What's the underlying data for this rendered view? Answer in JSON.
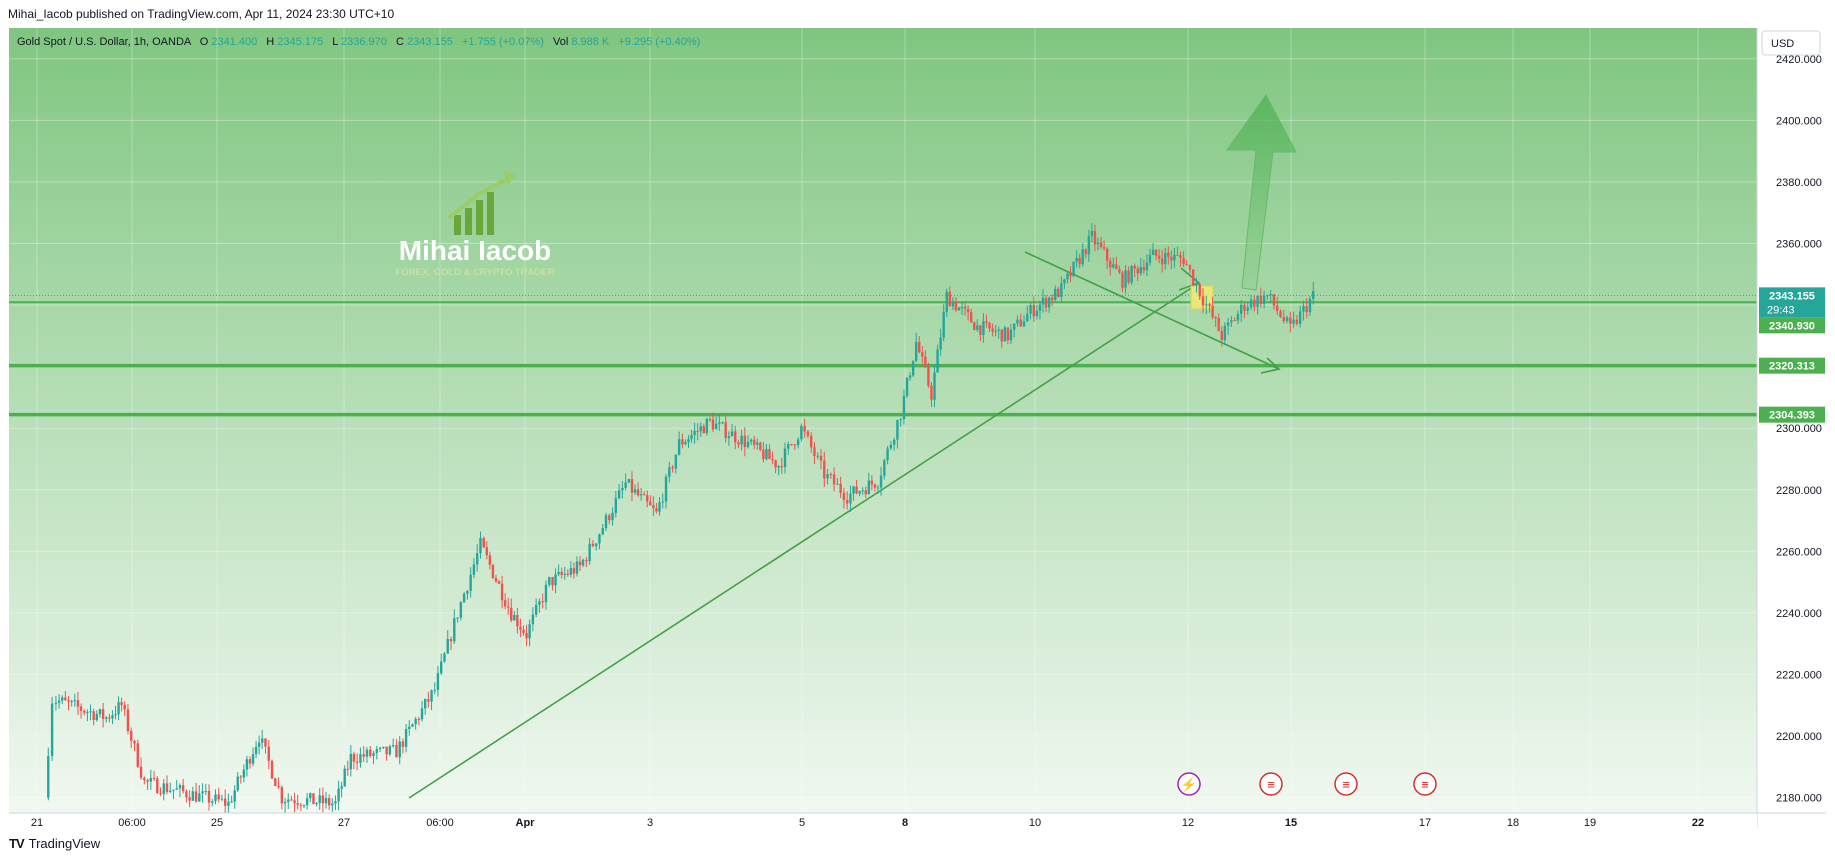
{
  "header": {
    "published_line": "Mihai_Iacob published on TradingView.com, Apr 11, 2024 23:30 UTC+10"
  },
  "legend": {
    "symbol": "Gold Spot / U.S. Dollar, 1h, OANDA",
    "o_label": "O",
    "o_value": "2341.400",
    "h_label": "H",
    "h_value": "2345.175",
    "l_label": "L",
    "l_value": "2336.970",
    "c_label": "C",
    "c_value": "2343.155",
    "change": "+1.755 (+0.07%)",
    "vol_label": "Vol",
    "vol_value": "8.988 K",
    "vol_change": "+9.295 (+0.40%)"
  },
  "currency_button": "USD",
  "watermark": {
    "name": "Mihai Iacob",
    "tagline": "FOREX, GOLD & CRYPTO TRADER",
    "logo_icon": "rising-bars-arrow-icon"
  },
  "footer": {
    "logo_icon": "tradingview-logo-icon",
    "brand": "TradingView"
  },
  "colors": {
    "bull": "#26a69a",
    "bear": "#ef5350",
    "level_line": "#4caf50",
    "trendline": "#43a047",
    "bg_top": "#7fc680",
    "bg_bottom": "#f1f8f1",
    "highlight": "#e6e87a"
  },
  "chart_data": {
    "type": "candlestick",
    "title": "Gold Spot / U.S. Dollar, 1h, OANDA",
    "ylim": [
      2175,
      2430
    ],
    "y_ticks": [
      2180,
      2200,
      2220,
      2240,
      2260,
      2280,
      2300,
      2320,
      2340,
      2360,
      2380,
      2400,
      2420
    ],
    "y_tick_labels": [
      "2180.000",
      "2200.000",
      "2220.000",
      "2240.000",
      "2260.000",
      "2280.000",
      "2300.000",
      "2320.000",
      "2340.000",
      "2360.000",
      "2380.000",
      "2400.000",
      "2420.000"
    ],
    "x_ticks": [
      {
        "label": "21",
        "bold": false
      },
      {
        "label": "06:00",
        "bold": false
      },
      {
        "label": "25",
        "bold": false
      },
      {
        "label": "27",
        "bold": false
      },
      {
        "label": "06:00",
        "bold": false
      },
      {
        "label": "Apr",
        "bold": true
      },
      {
        "label": "3",
        "bold": false
      },
      {
        "label": "5",
        "bold": false
      },
      {
        "label": "8",
        "bold": true
      },
      {
        "label": "10",
        "bold": false
      },
      {
        "label": "12",
        "bold": false
      },
      {
        "label": "15",
        "bold": true
      },
      {
        "label": "17",
        "bold": false
      },
      {
        "label": "18",
        "bold": false
      },
      {
        "label": "19",
        "bold": false
      },
      {
        "label": "22",
        "bold": true
      }
    ],
    "price_path": [
      [
        0.2,
        2180
      ],
      [
        0.3,
        2212
      ],
      [
        1.0,
        2206
      ],
      [
        1.2,
        2210
      ],
      [
        1.5,
        2185
      ],
      [
        2.6,
        2178
      ],
      [
        3.0,
        2200
      ],
      [
        3.3,
        2180
      ],
      [
        4.0,
        2178
      ],
      [
        4.2,
        2193
      ],
      [
        4.8,
        2195
      ],
      [
        5.3,
        2215
      ],
      [
        5.6,
        2240
      ],
      [
        5.9,
        2262
      ],
      [
        6.3,
        2240
      ],
      [
        6.5,
        2233
      ],
      [
        6.8,
        2250
      ],
      [
        7.2,
        2255
      ],
      [
        7.5,
        2268
      ],
      [
        7.8,
        2282
      ],
      [
        8.2,
        2272
      ],
      [
        8.5,
        2295
      ],
      [
        8.9,
        2302
      ],
      [
        9.4,
        2295
      ],
      [
        9.8,
        2288
      ],
      [
        10.1,
        2300
      ],
      [
        10.4,
        2285
      ],
      [
        10.7,
        2278
      ],
      [
        11.1,
        2283
      ],
      [
        11.4,
        2305
      ],
      [
        11.6,
        2328
      ],
      [
        11.8,
        2311
      ],
      [
        12.0,
        2343
      ],
      [
        12.4,
        2333
      ],
      [
        12.8,
        2330
      ],
      [
        13.1,
        2338
      ],
      [
        13.5,
        2345
      ],
      [
        13.9,
        2362
      ],
      [
        14.3,
        2348
      ],
      [
        14.7,
        2356
      ],
      [
        15.1,
        2355
      ],
      [
        15.4,
        2340
      ],
      [
        15.6,
        2330
      ],
      [
        15.9,
        2340
      ],
      [
        16.2,
        2343
      ],
      [
        16.5,
        2332
      ],
      [
        16.8,
        2343
      ]
    ],
    "last_price": {
      "value": 2343.155,
      "label": "2343.155",
      "countdown": "29:43"
    },
    "levels": [
      {
        "value": 2340.93,
        "label": "2340.930"
      },
      {
        "value": 2320.313,
        "label": "2320.313"
      },
      {
        "value": 2304.393,
        "label": "2304.393"
      }
    ],
    "event_icons": [
      {
        "name": "lightning-event-icon",
        "glyph": "⚡",
        "color": "#9c27b0"
      },
      {
        "name": "us-flag-event-icon",
        "glyph": "≡",
        "color": "#d32f2f"
      },
      {
        "name": "us-flag-event-icon",
        "glyph": "≡",
        "color": "#d32f2f"
      },
      {
        "name": "us-flag-event-icon",
        "glyph": "≡",
        "color": "#d32f2f"
      }
    ],
    "grid": true
  }
}
